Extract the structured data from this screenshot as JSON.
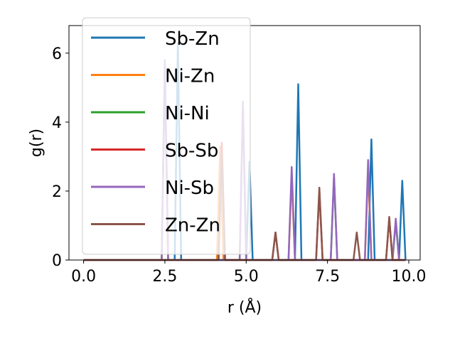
{
  "chart_data": {
    "type": "line",
    "title": "",
    "xlabel": "r (Å)",
    "ylabel": "g(r)",
    "xlim": [
      -0.45,
      10.35
    ],
    "ylim": [
      0,
      6.8
    ],
    "xticks": [
      0.0,
      2.5,
      5.0,
      7.5,
      10.0
    ],
    "xtick_labels": [
      "0.0",
      "2.5",
      "5.0",
      "7.5",
      "10.0"
    ],
    "yticks": [
      0,
      2,
      4,
      6
    ],
    "ytick_labels": [
      "0",
      "2",
      "4",
      "6"
    ],
    "grid": false,
    "legend_position": "upper-left",
    "series": [
      {
        "name": "Sb-Zn",
        "color": "#1f77b4",
        "peaks": [
          [
            2.9,
            6.3
          ],
          [
            5.1,
            2.85
          ],
          [
            6.6,
            5.1
          ],
          [
            8.85,
            3.5
          ],
          [
            9.8,
            2.3
          ]
        ]
      },
      {
        "name": "Ni-Zn",
        "color": "#ff7f0e",
        "peaks": [
          [
            2.5,
            5.5
          ],
          [
            4.2,
            3.3
          ],
          [
            6.4,
            2.4
          ],
          [
            8.75,
            2.6
          ]
        ]
      },
      {
        "name": "Ni-Ni",
        "color": "#2ca02c",
        "peaks": [
          [
            2.5,
            5.7
          ],
          [
            4.9,
            4.5
          ],
          [
            7.7,
            2.4
          ],
          [
            9.6,
            1.1
          ]
        ]
      },
      {
        "name": "Sb-Sb",
        "color": "#d62728",
        "peaks": [
          [
            4.25,
            3.4
          ],
          [
            5.9,
            0.8
          ],
          [
            7.25,
            2.0
          ],
          [
            9.4,
            1.2
          ]
        ]
      },
      {
        "name": "Ni-Sb",
        "color": "#9467bd",
        "peaks": [
          [
            2.5,
            5.8
          ],
          [
            4.9,
            4.6
          ],
          [
            6.4,
            2.7
          ],
          [
            7.7,
            2.5
          ],
          [
            8.75,
            2.9
          ],
          [
            9.6,
            1.2
          ]
        ]
      },
      {
        "name": "Zn-Zn",
        "color": "#8c564b",
        "peaks": [
          [
            4.25,
            3.1
          ],
          [
            5.9,
            0.8
          ],
          [
            7.25,
            2.1
          ],
          [
            8.4,
            0.8
          ],
          [
            9.4,
            1.25
          ]
        ]
      }
    ]
  }
}
